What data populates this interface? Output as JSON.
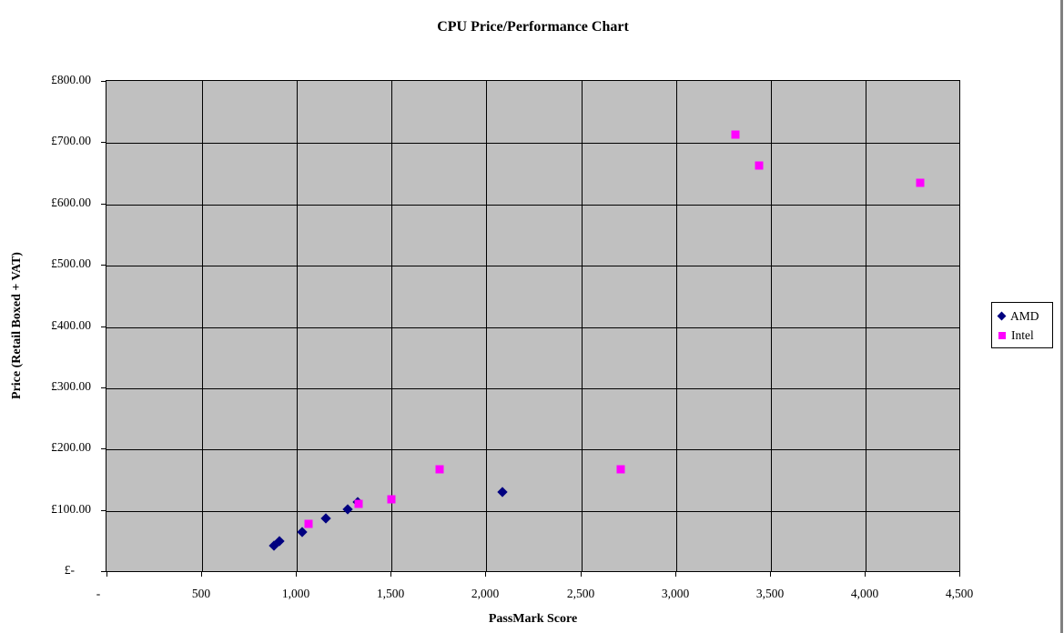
{
  "window": {
    "edge_color": "#808080"
  },
  "chart_data": {
    "type": "scatter",
    "title": "CPU Price/Performance Chart",
    "xlabel": "PassMark Score",
    "ylabel": "Price (Retail Boxed + VAT)",
    "xlim": [
      0,
      4500
    ],
    "ylim": [
      0,
      800
    ],
    "x_tick_interval": 500,
    "y_tick_interval": 100,
    "x_tick_labels": [
      "-",
      "500",
      "1,000",
      "1,500",
      "2,000",
      "2,500",
      "3,000",
      "3,500",
      "4,000",
      "4,500"
    ],
    "y_tick_labels": [
      "£-",
      "£100.00",
      "£200.00",
      "£300.00",
      "£400.00",
      "£500.00",
      "£600.00",
      "£700.00",
      "£800.00"
    ],
    "grid": true,
    "plot_bg_color": "#c0c0c0",
    "gridline_color": "#000000",
    "legend_position": "right",
    "series": [
      {
        "name": "AMD",
        "marker": "diamond",
        "color": "#000080",
        "points": [
          [
            880,
            43
          ],
          [
            910,
            51
          ],
          [
            1030,
            65
          ],
          [
            1155,
            88
          ],
          [
            1270,
            103
          ],
          [
            1320,
            114
          ],
          [
            2085,
            131
          ]
        ]
      },
      {
        "name": "Intel",
        "marker": "square",
        "color": "#ff00ff",
        "points": [
          [
            1060,
            79
          ],
          [
            1327,
            111
          ],
          [
            1500,
            119
          ],
          [
            1755,
            168
          ],
          [
            2710,
            168
          ],
          [
            3315,
            714
          ],
          [
            3440,
            663
          ],
          [
            4290,
            635
          ]
        ]
      }
    ]
  }
}
